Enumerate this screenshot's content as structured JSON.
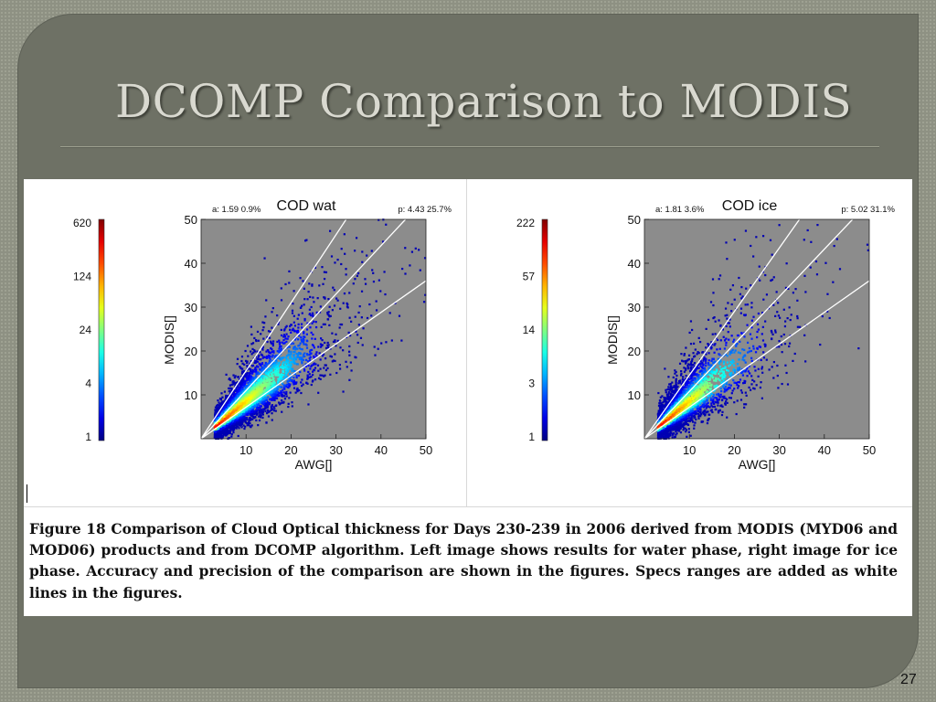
{
  "slide": {
    "title": "DCOMP Comparison to MODIS",
    "page_number": "27"
  },
  "caption": "Figure 18 Comparison of Cloud Optical thickness for Days 230-239 in 2006 derived from MODIS (MYD06 and MOD06) products and from DCOMP algorithm. Left image shows results for water phase, right image for ice phase. Accuracy and precision of the comparison are shown in the figures. Specs ranges are added as white lines in the figures.",
  "chart_data": [
    {
      "type": "heatmap",
      "title": "COD wat",
      "xlabel": "AWG[]",
      "ylabel": "MODIS[]",
      "xlim": [
        0,
        50
      ],
      "ylim": [
        0,
        50
      ],
      "x_ticks": [
        "10",
        "20",
        "30",
        "40",
        "50"
      ],
      "y_ticks": [
        "10",
        "20",
        "30",
        "40",
        "50"
      ],
      "accuracy_label": "a:  1.59    0.9%",
      "precision_label": "p:  4.43   25.7%",
      "colorbar": {
        "ticks": [
          "620",
          "124",
          "24",
          "4",
          "1"
        ],
        "scale": "log",
        "range": [
          1,
          620
        ]
      },
      "density": {
        "core_slope": 0.85,
        "spread": 0.32,
        "spread_offset": 1.2,
        "x_mode": 3,
        "x_decay": 9,
        "count": 5200
      },
      "spec_lines": [
        {
          "slope": 1.55,
          "intercept": 0
        },
        {
          "slope": 1.1,
          "intercept": 0
        },
        {
          "slope": 0.72,
          "intercept": 0
        }
      ],
      "background_color": "#8c8c8c",
      "spec_line_color": "#ffffff"
    },
    {
      "type": "heatmap",
      "title": "COD ice",
      "xlabel": "AWG[]",
      "ylabel": "MODIS[]",
      "xlim": [
        0,
        50
      ],
      "ylim": [
        0,
        50
      ],
      "x_ticks": [
        "10",
        "20",
        "30",
        "40",
        "50"
      ],
      "y_ticks": [
        "10",
        "20",
        "30",
        "40",
        "50"
      ],
      "accuracy_label": "a:  1.81    3.6%",
      "precision_label": "p:  5.02   31.1%",
      "colorbar": {
        "ticks": [
          "222",
          "57",
          "14",
          "3",
          "1"
        ],
        "scale": "log",
        "range": [
          1,
          222
        ]
      },
      "density": {
        "core_slope": 0.85,
        "spread": 0.38,
        "spread_offset": 1.5,
        "x_mode": 3,
        "x_decay": 8,
        "count": 3400
      },
      "spec_lines": [
        {
          "slope": 1.45,
          "intercept": 0
        },
        {
          "slope": 1.08,
          "intercept": 0
        },
        {
          "slope": 0.72,
          "intercept": 0
        }
      ],
      "background_color": "#8c8c8c",
      "spec_line_color": "#ffffff"
    }
  ]
}
